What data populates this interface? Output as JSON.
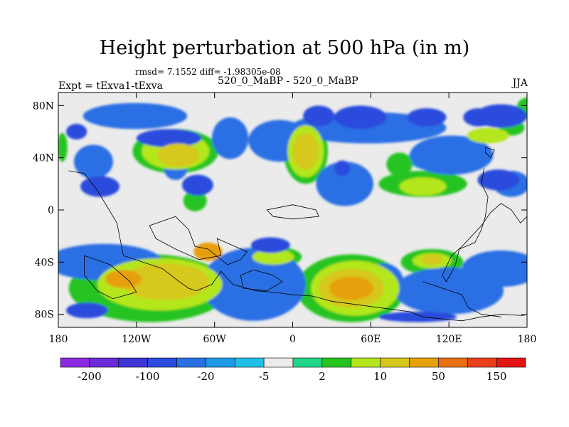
{
  "header": {
    "title": "Height perturbation at 500 hPa (in m)",
    "stats": "rmsd= 7.1552 diff= -1.98305e-08",
    "expt": "Expt = tExva1-tExva",
    "subtitle": "520_0_MaBP - 520_0_MaBP",
    "season": "JJA"
  },
  "chart_data": {
    "type": "heatmap",
    "title": "Height perturbation at 500 hPa (in m)",
    "xlabel": "",
    "ylabel": "",
    "xlim": [
      -180,
      180
    ],
    "ylim": [
      -90,
      90
    ],
    "x_ticks": [
      -180,
      -120,
      -60,
      0,
      60,
      120,
      180
    ],
    "x_tick_labels": [
      "180",
      "120W",
      "60W",
      "0",
      "60E",
      "120E",
      "180"
    ],
    "y_ticks": [
      80,
      40,
      0,
      -40,
      -80
    ],
    "y_tick_labels": [
      "80N",
      "40N",
      "0",
      "40S",
      "80S"
    ],
    "colorbar": {
      "colors": [
        "#8a2be2",
        "#6a2ad8",
        "#4036d6",
        "#2a4bdc",
        "#2a6fe4",
        "#1f9ae6",
        "#1ec0e6",
        "#ebebeb",
        "#20d688",
        "#26c420",
        "#b4e61e",
        "#d6c81a",
        "#e6a00a",
        "#e87010",
        "#e8401a",
        "#e21414"
      ],
      "labels": [
        "-200",
        "-100",
        "-20",
        "-5",
        "2",
        "10",
        "50",
        "150"
      ]
    },
    "features": [
      {
        "level": 3,
        "lon": 160,
        "lat": 72,
        "rx": 20,
        "ry": 9
      },
      {
        "level": 3,
        "lon": 143,
        "lat": 71,
        "rx": 12,
        "ry": 7
      },
      {
        "level": 3,
        "lon": 103,
        "lat": 71,
        "rx": 15,
        "ry": 7
      },
      {
        "level": 3,
        "lon": 20,
        "lat": 72,
        "rx": 12,
        "ry": 8
      },
      {
        "level": 3,
        "lon": 52,
        "lat": 71,
        "rx": 20,
        "ry": 9
      },
      {
        "level": 3,
        "lon": -95,
        "lat": 55,
        "rx": 25,
        "ry": 7
      },
      {
        "level": 3,
        "lon": -166,
        "lat": 60,
        "rx": 8,
        "ry": 6
      },
      {
        "level": 3,
        "lon": -148,
        "lat": 18,
        "rx": 15,
        "ry": 8
      },
      {
        "level": 3,
        "lon": -73,
        "lat": 19,
        "rx": 12,
        "ry": 8
      },
      {
        "level": 3,
        "lon": 158,
        "lat": 23,
        "rx": 16,
        "ry": 8
      },
      {
        "level": 3,
        "lon": -17,
        "lat": -27,
        "rx": 15,
        "ry": 6
      },
      {
        "level": 3,
        "lon": -158,
        "lat": -77,
        "rx": 16,
        "ry": 6
      },
      {
        "level": 3,
        "lon": 96,
        "lat": -82,
        "rx": 30,
        "ry": 4
      },
      {
        "level": 3,
        "lon": 38,
        "lat": 32,
        "rx": 6,
        "ry": 6
      },
      {
        "level": 4,
        "lon": -121,
        "lat": 72,
        "rx": 40,
        "ry": 10
      },
      {
        "level": 4,
        "lon": 58,
        "lat": 63,
        "rx": 60,
        "ry": 12
      },
      {
        "level": 4,
        "lon": -48,
        "lat": 55,
        "rx": 14,
        "ry": 16
      },
      {
        "level": 4,
        "lon": -10,
        "lat": 53,
        "rx": 24,
        "ry": 16
      },
      {
        "level": 4,
        "lon": 122,
        "lat": 42,
        "rx": 32,
        "ry": 15
      },
      {
        "level": 4,
        "lon": -153,
        "lat": 37,
        "rx": 15,
        "ry": 13
      },
      {
        "level": 4,
        "lon": 40,
        "lat": 20,
        "rx": 22,
        "ry": 17
      },
      {
        "level": 4,
        "lon": 168,
        "lat": 20,
        "rx": 14,
        "ry": 10
      },
      {
        "level": 4,
        "lon": -90,
        "lat": 32,
        "rx": 9,
        "ry": 9
      },
      {
        "level": 4,
        "lon": -145,
        "lat": -40,
        "rx": 45,
        "ry": 14
      },
      {
        "level": 4,
        "lon": 160,
        "lat": -45,
        "rx": 30,
        "ry": 14
      },
      {
        "level": 4,
        "lon": -30,
        "lat": -57,
        "rx": 40,
        "ry": 28
      },
      {
        "level": 4,
        "lon": 70,
        "lat": -55,
        "rx": 15,
        "ry": 14
      },
      {
        "level": 4,
        "lon": 120,
        "lat": -62,
        "rx": 42,
        "ry": 18
      },
      {
        "level": 5,
        "lon": 103,
        "lat": 40,
        "rx": 14,
        "ry": 9
      },
      {
        "level": 5,
        "lon": -39,
        "lat": -57,
        "rx": 28,
        "ry": 20
      },
      {
        "level": 5,
        "lon": 132,
        "lat": -64,
        "rx": 27,
        "ry": 12
      },
      {
        "level": 6,
        "lon": -35,
        "lat": -57,
        "rx": 16,
        "ry": 12
      },
      {
        "level": 9,
        "lon": -15,
        "lat": -36,
        "rx": 22,
        "ry": 8
      },
      {
        "level": 9,
        "lon": 100,
        "lat": 20,
        "rx": 34,
        "ry": 10
      },
      {
        "level": 9,
        "lon": 180,
        "lat": 78,
        "rx": 8,
        "ry": 8
      },
      {
        "level": 9,
        "lon": 168,
        "lat": 63,
        "rx": 10,
        "ry": 6
      },
      {
        "level": 9,
        "lon": -177,
        "lat": 48,
        "rx": 4,
        "ry": 11
      },
      {
        "level": 9,
        "lon": 60,
        "lat": 64,
        "rx": 10,
        "ry": 6
      },
      {
        "level": 9,
        "lon": 82,
        "lat": 35,
        "rx": 10,
        "ry": 9
      },
      {
        "level": 9,
        "lon": 107,
        "lat": -40,
        "rx": 24,
        "ry": 10
      },
      {
        "level": 9,
        "lon": 45,
        "lat": -60,
        "rx": 42,
        "ry": 26
      },
      {
        "level": 9,
        "lon": -110,
        "lat": -60,
        "rx": 62,
        "ry": 26
      },
      {
        "level": 9,
        "lon": -90,
        "lat": 45,
        "rx": 33,
        "ry": 17
      },
      {
        "level": 9,
        "lon": -75,
        "lat": 7,
        "rx": 9,
        "ry": 8
      },
      {
        "level": 9,
        "lon": 10,
        "lat": 45,
        "rx": 17,
        "ry": 25
      },
      {
        "level": 10,
        "lon": -102,
        "lat": -57,
        "rx": 48,
        "ry": 20
      },
      {
        "level": 10,
        "lon": 48,
        "lat": -60,
        "rx": 34,
        "ry": 21
      },
      {
        "level": 10,
        "lon": 10,
        "lat": 45,
        "rx": 14,
        "ry": 20
      },
      {
        "level": 10,
        "lon": -90,
        "lat": 45,
        "rx": 26,
        "ry": 14
      },
      {
        "level": 10,
        "lon": 100,
        "lat": 18,
        "rx": 18,
        "ry": 7
      },
      {
        "level": 10,
        "lon": 150,
        "lat": 57,
        "rx": 16,
        "ry": 6
      },
      {
        "level": 10,
        "lon": -15,
        "lat": -36,
        "rx": 16,
        "ry": 6
      },
      {
        "level": 10,
        "lon": 107,
        "lat": -39,
        "rx": 15,
        "ry": 6
      },
      {
        "level": 11,
        "lon": -98,
        "lat": -55,
        "rx": 34,
        "ry": 14
      },
      {
        "level": 11,
        "lon": 45,
        "lat": -60,
        "rx": 25,
        "ry": 15
      },
      {
        "level": 11,
        "lon": 10,
        "lat": 45,
        "rx": 10,
        "ry": 14
      },
      {
        "level": 11,
        "lon": -88,
        "lat": 42,
        "rx": 16,
        "ry": 9
      },
      {
        "level": 11,
        "lon": 107,
        "lat": -38,
        "rx": 8,
        "ry": 4
      },
      {
        "level": 12,
        "lon": -130,
        "lat": -53,
        "rx": 14,
        "ry": 7
      },
      {
        "level": 12,
        "lon": -65,
        "lat": -32,
        "rx": 11,
        "ry": 7
      },
      {
        "level": 12,
        "lon": 45,
        "lat": -60,
        "rx": 17,
        "ry": 9
      }
    ]
  }
}
